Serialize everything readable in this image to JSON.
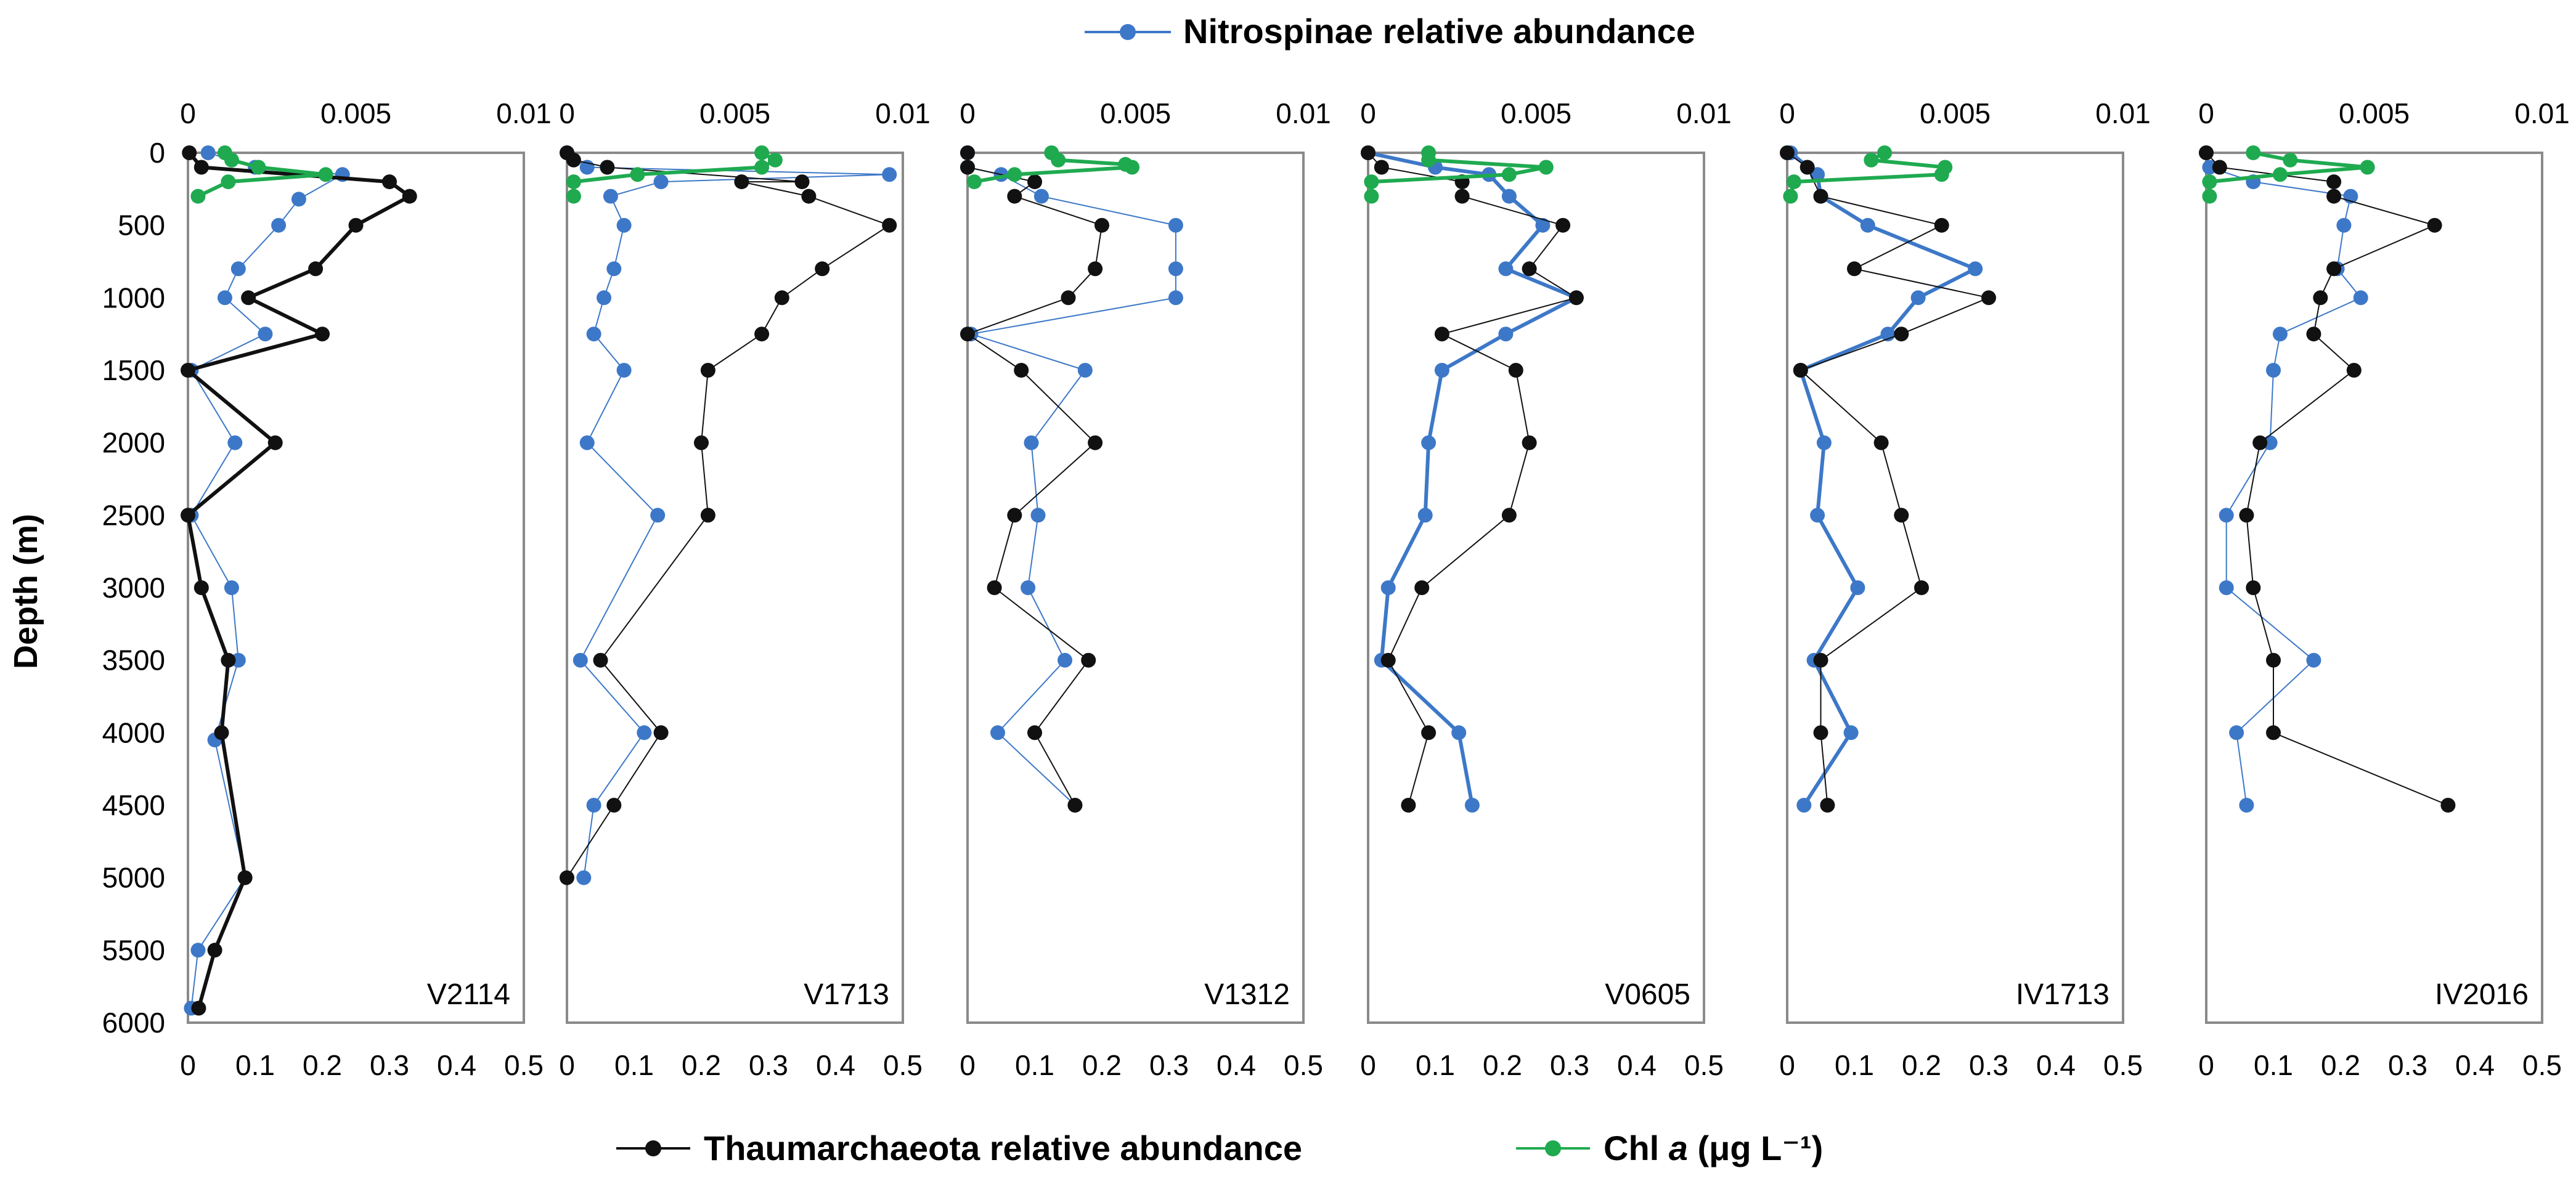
{
  "chart_data": {
    "type": "line",
    "ylabel": "Depth (m)",
    "y_ticks": [
      0,
      500,
      1000,
      1500,
      2000,
      2500,
      3000,
      3500,
      4000,
      4500,
      5000,
      5500,
      6000
    ],
    "ylim": [
      6000,
      0
    ],
    "top_axis": {
      "ticks": [
        "0",
        "0.005",
        "0.01"
      ],
      "range": [
        0,
        0.01
      ]
    },
    "bottom_axis": {
      "ticks": [
        "0",
        "0.1",
        "0.2",
        "0.3",
        "0.4",
        "0.5"
      ],
      "range": [
        0,
        0.5
      ]
    },
    "legend": {
      "nitrospinae": "Nitrospinae relative abundance",
      "thaum": "Thaumarchaeota relative abundance",
      "chl_prefix": "Chl ",
      "chl_italic": "a",
      "chl_suffix": " (μg L⁻¹)"
    },
    "colors": {
      "nitrospinae": "#3d78c8",
      "thaum": "#111111",
      "chl": "#1faa50"
    },
    "panels": [
      {
        "label": "V2114",
        "nitrospinae": [
          [
            0.6,
            0
          ],
          [
            2.0,
            100
          ],
          [
            4.6,
            150
          ],
          [
            3.3,
            320
          ],
          [
            2.7,
            500
          ],
          [
            1.5,
            800
          ],
          [
            1.1,
            1000
          ],
          [
            2.3,
            1250
          ],
          [
            0.1,
            1500
          ],
          [
            1.4,
            2000
          ],
          [
            0.1,
            2500
          ],
          [
            1.3,
            3000
          ],
          [
            1.5,
            3500
          ],
          [
            0.8,
            4050
          ],
          [
            1.7,
            5000
          ],
          [
            0.3,
            5500
          ],
          [
            0.1,
            5900
          ]
        ],
        "thaum": [
          [
            0.002,
            0
          ],
          [
            0.02,
            100
          ],
          [
            0.3,
            200
          ],
          [
            0.33,
            300
          ],
          [
            0.25,
            500
          ],
          [
            0.19,
            800
          ],
          [
            0.09,
            1000
          ],
          [
            0.2,
            1250
          ],
          [
            0.0,
            1500
          ],
          [
            0.13,
            2000
          ],
          [
            0.0,
            2500
          ],
          [
            0.02,
            3000
          ],
          [
            0.06,
            3500
          ],
          [
            0.05,
            4000
          ],
          [
            0.085,
            5000
          ],
          [
            0.04,
            5500
          ],
          [
            0.016,
            5900
          ]
        ],
        "chl": [
          [
            0.0011,
            0
          ],
          [
            0.0013,
            50
          ],
          [
            0.0021,
            100
          ],
          [
            0.0041,
            150
          ],
          [
            0.0012,
            200
          ],
          [
            0.0003,
            300
          ]
        ],
        "nitro_bold": false,
        "thaum_bold": true
      },
      {
        "label": "V1713",
        "nitrospinae": [
          [
            0.0,
            0
          ],
          [
            0.6,
            100
          ],
          [
            9.6,
            150
          ],
          [
            2.8,
            200
          ],
          [
            1.3,
            300
          ],
          [
            1.7,
            500
          ],
          [
            1.4,
            800
          ],
          [
            1.1,
            1000
          ],
          [
            0.8,
            1250
          ],
          [
            1.7,
            1500
          ],
          [
            0.6,
            2000
          ],
          [
            2.7,
            2500
          ],
          [
            0.4,
            3500
          ],
          [
            2.3,
            4000
          ],
          [
            0.8,
            4500
          ],
          [
            0.5,
            5000
          ]
        ],
        "thaum": [
          [
            0.0,
            0
          ],
          [
            0.01,
            50
          ],
          [
            0.06,
            100
          ],
          [
            0.35,
            200
          ],
          [
            0.26,
            200
          ],
          [
            0.36,
            300
          ],
          [
            0.48,
            500
          ],
          [
            0.38,
            800
          ],
          [
            0.32,
            1000
          ],
          [
            0.29,
            1250
          ],
          [
            0.21,
            1500
          ],
          [
            0.2,
            2000
          ],
          [
            0.21,
            2500
          ],
          [
            0.05,
            3500
          ],
          [
            0.14,
            4000
          ],
          [
            0.07,
            4500
          ],
          [
            0.0,
            5000
          ]
        ],
        "chl": [
          [
            0.0058,
            0
          ],
          [
            0.0062,
            50
          ],
          [
            0.0058,
            100
          ],
          [
            0.0021,
            150
          ],
          [
            0.0002,
            200
          ],
          [
            0.0002,
            300
          ]
        ],
        "nitro_bold": false,
        "thaum_bold": false
      },
      {
        "label": "V1312",
        "nitrospinae": [
          [
            0.0,
            0
          ],
          [
            0.0,
            100
          ],
          [
            1.0,
            150
          ],
          [
            2.2,
            300
          ],
          [
            6.2,
            500
          ],
          [
            6.2,
            800
          ],
          [
            6.2,
            1000
          ],
          [
            0.1,
            1250
          ],
          [
            3.5,
            1500
          ],
          [
            1.9,
            2000
          ],
          [
            2.1,
            2500
          ],
          [
            1.8,
            3000
          ],
          [
            2.9,
            3500
          ],
          [
            0.9,
            4000
          ],
          [
            3.2,
            4500
          ]
        ],
        "thaum": [
          [
            0.0,
            0
          ],
          [
            0.0,
            100
          ],
          [
            0.1,
            200
          ],
          [
            0.07,
            300
          ],
          [
            0.2,
            500
          ],
          [
            0.19,
            800
          ],
          [
            0.15,
            1000
          ],
          [
            0.0,
            1250
          ],
          [
            0.08,
            1500
          ],
          [
            0.19,
            2000
          ],
          [
            0.07,
            2500
          ],
          [
            0.04,
            3000
          ],
          [
            0.18,
            3500
          ],
          [
            0.1,
            4000
          ],
          [
            0.16,
            4500
          ]
        ],
        "chl": [
          [
            0.0025,
            0
          ],
          [
            0.0027,
            50
          ],
          [
            0.0047,
            80
          ],
          [
            0.0049,
            100
          ],
          [
            0.0014,
            150
          ],
          [
            0.0002,
            200
          ]
        ],
        "nitro_bold": false,
        "thaum_bold": false
      },
      {
        "label": "V0605",
        "nitrospinae": [
          [
            0.0,
            0
          ],
          [
            2.0,
            100
          ],
          [
            3.6,
            150
          ],
          [
            4.2,
            300
          ],
          [
            5.2,
            500
          ],
          [
            4.1,
            800
          ],
          [
            6.2,
            1000
          ],
          [
            4.1,
            1250
          ],
          [
            2.2,
            1500
          ],
          [
            1.8,
            2000
          ],
          [
            1.7,
            2500
          ],
          [
            0.6,
            3000
          ],
          [
            0.4,
            3500
          ],
          [
            2.7,
            4000
          ],
          [
            3.1,
            4500
          ]
        ],
        "thaum": [
          [
            0.0,
            0
          ],
          [
            0.02,
            100
          ],
          [
            0.14,
            200
          ],
          [
            0.14,
            300
          ],
          [
            0.29,
            500
          ],
          [
            0.24,
            800
          ],
          [
            0.31,
            1000
          ],
          [
            0.11,
            1250
          ],
          [
            0.22,
            1500
          ],
          [
            0.24,
            2000
          ],
          [
            0.21,
            2500
          ],
          [
            0.08,
            3000
          ],
          [
            0.03,
            3500
          ],
          [
            0.09,
            4000
          ],
          [
            0.06,
            4500
          ]
        ],
        "chl": [
          [
            0.0018,
            0
          ],
          [
            0.0018,
            50
          ],
          [
            0.0053,
            100
          ],
          [
            0.0042,
            150
          ],
          [
            0.0001,
            200
          ],
          [
            0.0001,
            300
          ]
        ],
        "nitro_bold": true,
        "thaum_bold": false
      },
      {
        "label": "IV1713",
        "nitrospinae": [
          [
            0.1,
            0
          ],
          [
            0.9,
            150
          ],
          [
            1.0,
            300
          ],
          [
            2.4,
            500
          ],
          [
            5.6,
            800
          ],
          [
            3.9,
            1000
          ],
          [
            3.0,
            1250
          ],
          [
            0.4,
            1500
          ],
          [
            1.1,
            2000
          ],
          [
            0.9,
            2500
          ],
          [
            2.1,
            3000
          ],
          [
            0.8,
            3500
          ],
          [
            1.9,
            4000
          ],
          [
            0.5,
            4500
          ]
        ],
        "thaum": [
          [
            0.0,
            0
          ],
          [
            0.03,
            100
          ],
          [
            0.05,
            300
          ],
          [
            0.23,
            500
          ],
          [
            0.1,
            800
          ],
          [
            0.3,
            1000
          ],
          [
            0.17,
            1250
          ],
          [
            0.02,
            1500
          ],
          [
            0.14,
            2000
          ],
          [
            0.17,
            2500
          ],
          [
            0.2,
            3000
          ],
          [
            0.05,
            3500
          ],
          [
            0.05,
            4000
          ],
          [
            0.06,
            4500
          ]
        ],
        "chl": [
          [
            0.0029,
            0
          ],
          [
            0.0025,
            50
          ],
          [
            0.0047,
            100
          ],
          [
            0.0046,
            150
          ],
          [
            0.0002,
            200
          ],
          [
            0.0001,
            300
          ]
        ],
        "nitro_bold": true,
        "thaum_bold": false
      },
      {
        "label": "IV2016",
        "nitrospinae": [
          [
            0.0,
            0
          ],
          [
            0.1,
            100
          ],
          [
            1.4,
            200
          ],
          [
            4.3,
            300
          ],
          [
            4.1,
            500
          ],
          [
            3.9,
            800
          ],
          [
            4.6,
            1000
          ],
          [
            2.2,
            1250
          ],
          [
            2.0,
            1500
          ],
          [
            1.9,
            2000
          ],
          [
            0.6,
            2500
          ],
          [
            0.6,
            3000
          ],
          [
            3.2,
            3500
          ],
          [
            0.9,
            4000
          ],
          [
            1.2,
            4500
          ]
        ],
        "thaum": [
          [
            0.0,
            0
          ],
          [
            0.02,
            100
          ],
          [
            0.19,
            200
          ],
          [
            0.19,
            300
          ],
          [
            0.34,
            500
          ],
          [
            0.19,
            800
          ],
          [
            0.17,
            1000
          ],
          [
            0.16,
            1250
          ],
          [
            0.22,
            1500
          ],
          [
            0.08,
            2000
          ],
          [
            0.06,
            2500
          ],
          [
            0.07,
            3000
          ],
          [
            0.1,
            3500
          ],
          [
            0.1,
            4000
          ],
          [
            0.36,
            4500
          ]
        ],
        "chl": [
          [
            0.0014,
            0
          ],
          [
            0.0025,
            50
          ],
          [
            0.0048,
            100
          ],
          [
            0.0022,
            150
          ],
          [
            0.0001,
            200
          ],
          [
            0.0001,
            300
          ]
        ],
        "nitro_bold": false,
        "thaum_bold": false
      }
    ]
  }
}
